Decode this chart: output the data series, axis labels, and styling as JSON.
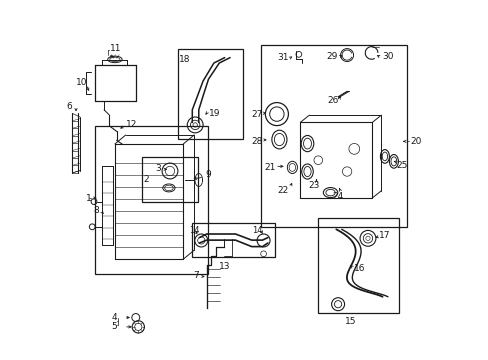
{
  "bg_color": "#ffffff",
  "lc": "#1a1a1a",
  "fig_w": 4.89,
  "fig_h": 3.6,
  "dpi": 100,
  "boxes": {
    "radiator": [
      0.085,
      0.24,
      0.315,
      0.41
    ],
    "parts23": [
      0.215,
      0.44,
      0.155,
      0.125
    ],
    "hose1819": [
      0.315,
      0.615,
      0.18,
      0.25
    ],
    "thermostat": [
      0.545,
      0.37,
      0.405,
      0.505
    ],
    "hose1314": [
      0.355,
      0.285,
      0.23,
      0.095
    ],
    "hose1517": [
      0.705,
      0.13,
      0.225,
      0.265
    ]
  },
  "label_positions": {
    "1": [
      0.055,
      0.455,
      "right"
    ],
    "2": [
      0.218,
      0.508,
      "left"
    ],
    "3": [
      0.258,
      0.543,
      "left"
    ],
    "4": [
      0.155,
      0.115,
      "left"
    ],
    "5": [
      0.155,
      0.088,
      "left"
    ],
    "6": [
      0.032,
      0.605,
      "left"
    ],
    "7": [
      0.385,
      0.225,
      "right"
    ],
    "8": [
      0.082,
      0.452,
      "right"
    ],
    "9": [
      0.305,
      0.535,
      "left"
    ],
    "10": [
      0.032,
      0.745,
      "left"
    ],
    "11": [
      0.095,
      0.875,
      "left"
    ],
    "12": [
      0.195,
      0.665,
      "left"
    ],
    "13": [
      0.458,
      0.268,
      "center"
    ],
    "15": [
      0.755,
      0.108,
      "center"
    ],
    "16": [
      0.782,
      0.235,
      "left"
    ],
    "17": [
      0.875,
      0.315,
      "left"
    ],
    "18": [
      0.318,
      0.825,
      "left"
    ],
    "19": [
      0.435,
      0.745,
      "left"
    ],
    "20": [
      0.955,
      0.575,
      "left"
    ],
    "21": [
      0.557,
      0.488,
      "left"
    ],
    "22": [
      0.575,
      0.432,
      "left"
    ],
    "23": [
      0.655,
      0.437,
      "center"
    ],
    "24": [
      0.718,
      0.405,
      "center"
    ],
    "25": [
      0.872,
      0.452,
      "left"
    ],
    "26": [
      0.718,
      0.638,
      "left"
    ],
    "27": [
      0.563,
      0.648,
      "left"
    ],
    "28": [
      0.598,
      0.585,
      "left"
    ],
    "29": [
      0.748,
      0.755,
      "left"
    ],
    "30": [
      0.895,
      0.775,
      "left"
    ],
    "31": [
      0.608,
      0.762,
      "left"
    ]
  }
}
